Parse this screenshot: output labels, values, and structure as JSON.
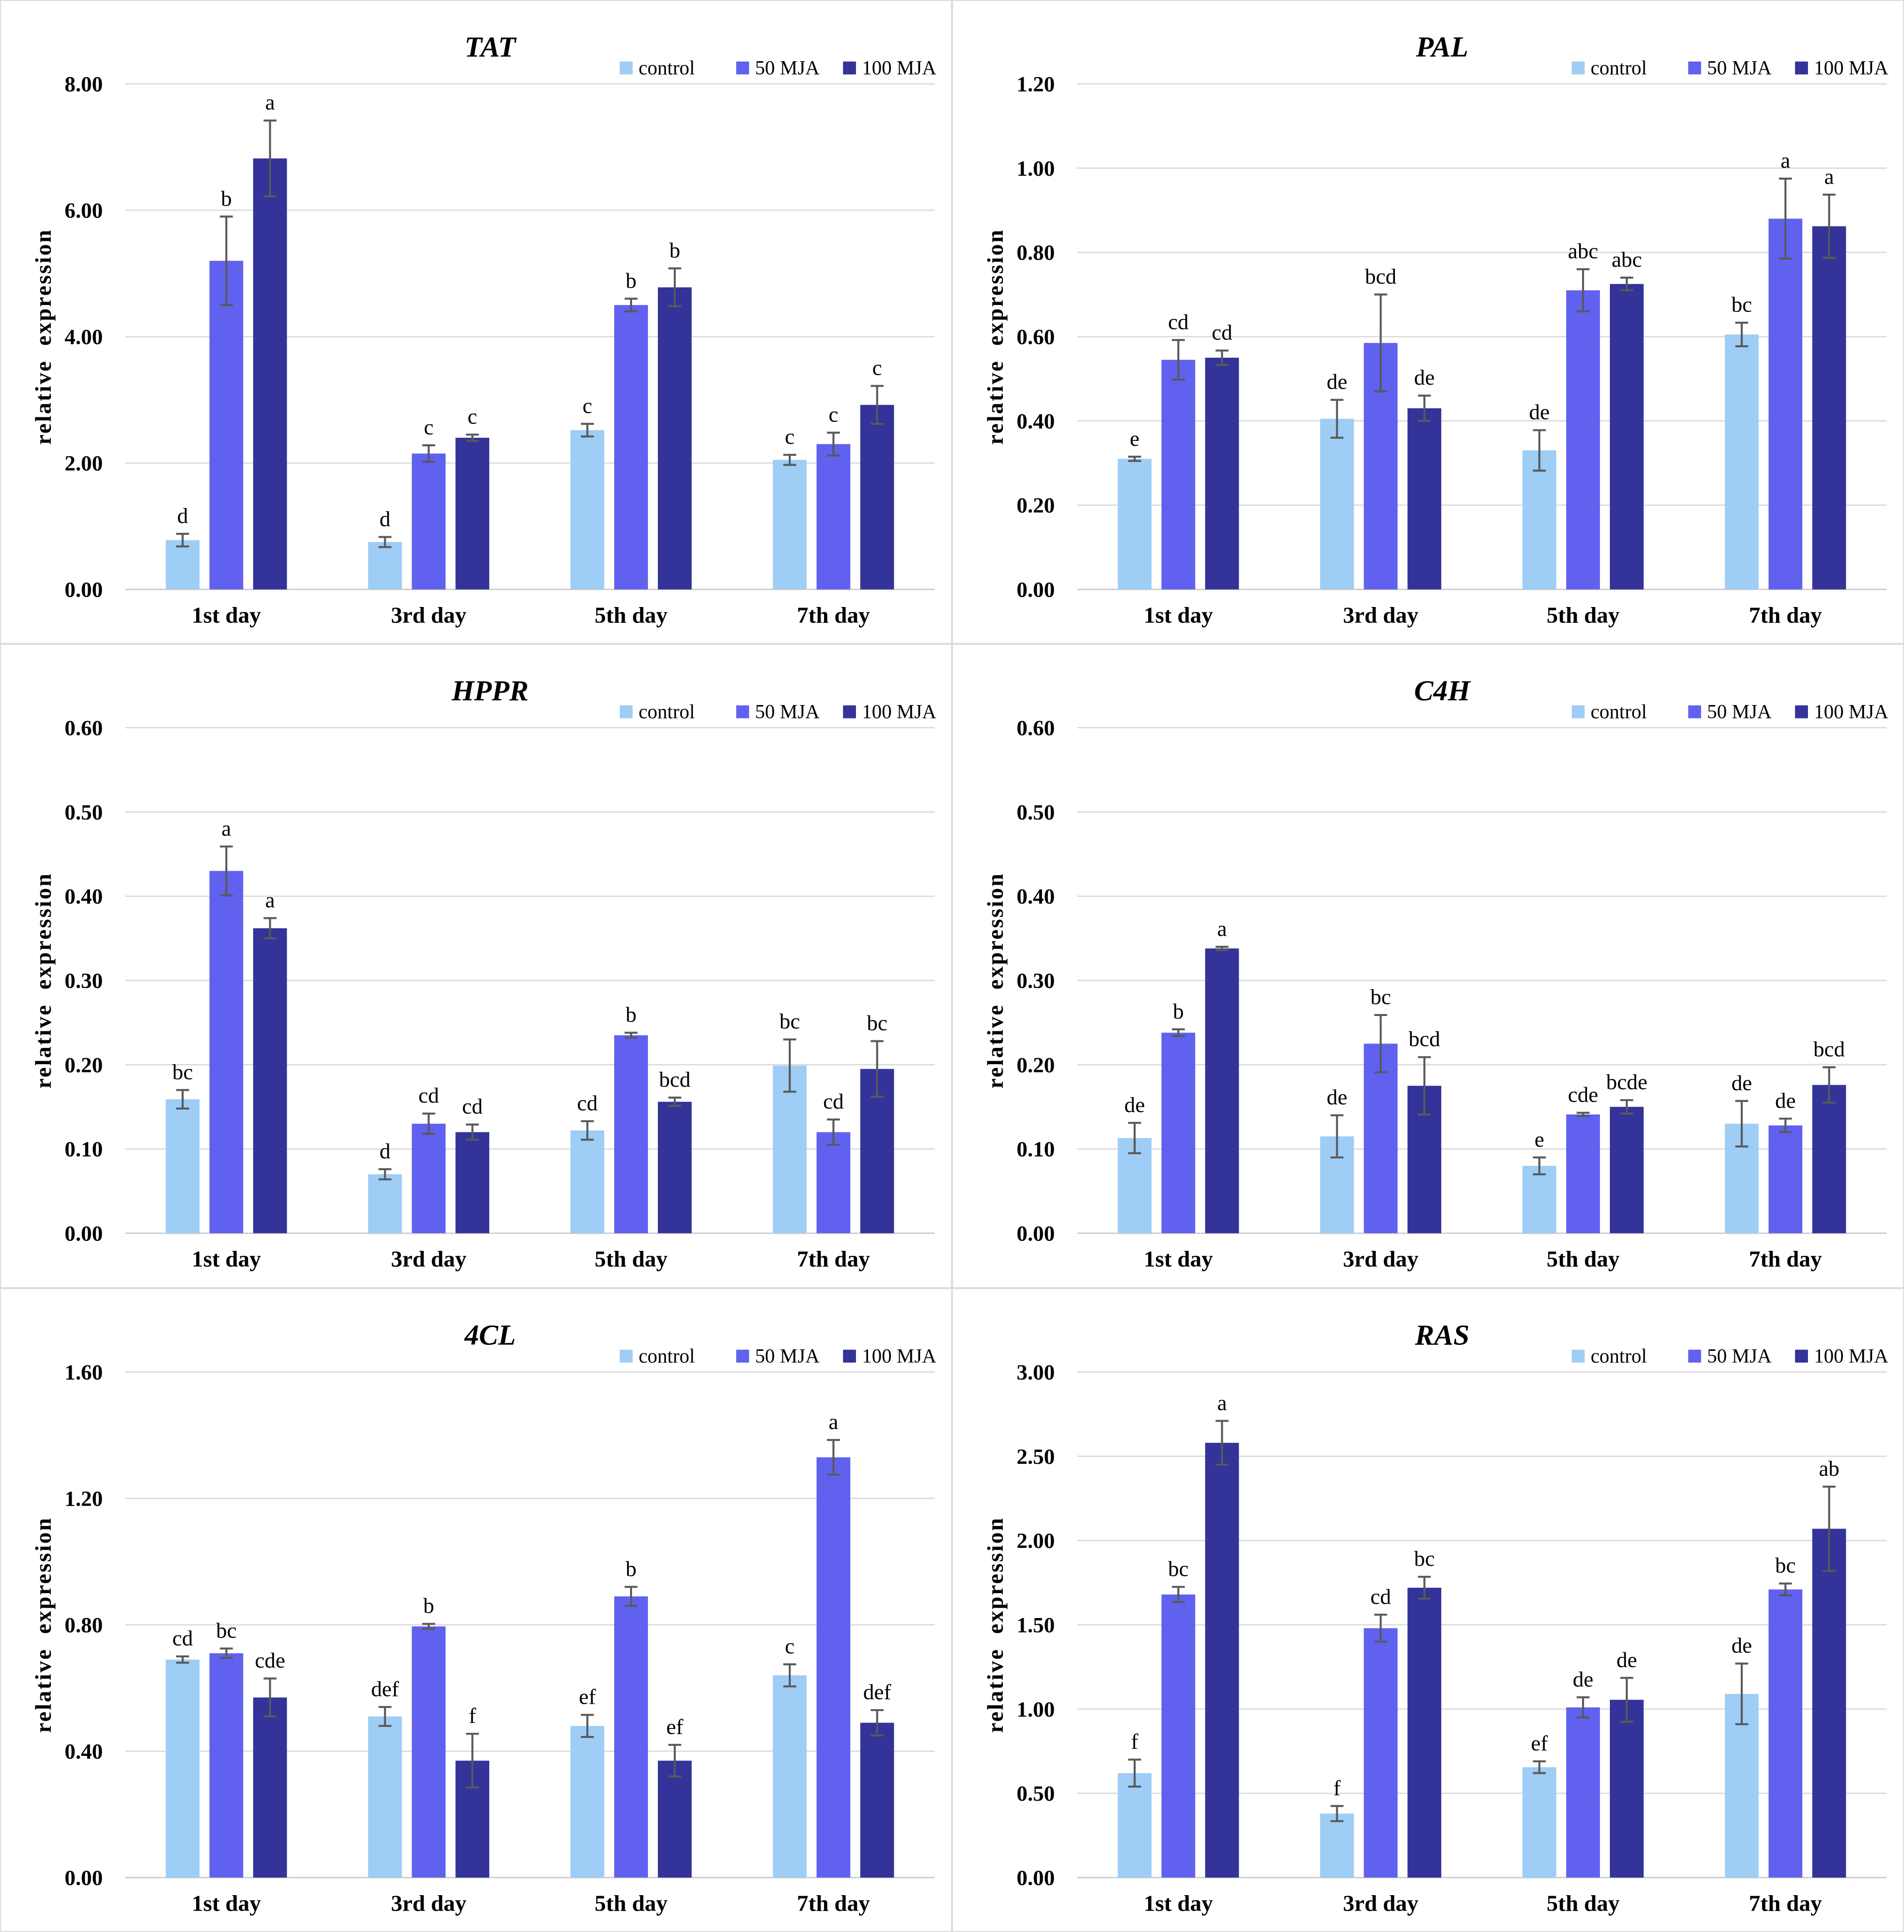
{
  "figure": {
    "description": "Relative expression bar charts of six genes under methyl jasmonate treatments",
    "ylabel": "relative expression",
    "categories": [
      "1st day",
      "3rd day",
      "5th day",
      "7th day"
    ]
  },
  "legend": {
    "items": [
      {
        "label": "control",
        "color": "#9ECDF5"
      },
      {
        "label": "50 MJA",
        "color": "#6161F0"
      },
      {
        "label": "100 MJA",
        "color": "#333399"
      }
    ]
  },
  "styles": {
    "grid_color": "#D9D9D9",
    "axis_color": "#D0D0D0",
    "error_color": "#595959",
    "panel_border": "#DCDCDC",
    "text_color": "#000000",
    "background": "#FFFFFF"
  },
  "chart_data": [
    {
      "type": "bar",
      "title": "TAT",
      "ylabel": "relative expression",
      "categories": [
        "1st day",
        "3rd day",
        "5th day",
        "7th day"
      ],
      "ylim": [
        0,
        8
      ],
      "yticks": [
        0,
        2,
        4,
        6,
        8
      ],
      "ytick_labels": [
        "0.00",
        "2.00",
        "4.00",
        "6.00",
        "8.00"
      ],
      "grid": true,
      "legend_position": "top-right",
      "series": [
        {
          "name": "control",
          "color": "#9ECDF5",
          "values": [
            0.78,
            0.75,
            2.52,
            2.05
          ],
          "errors": [
            0.1,
            0.08,
            0.1,
            0.08
          ],
          "letters": [
            "d",
            "d",
            "c",
            "c"
          ]
        },
        {
          "name": "50 MJA",
          "color": "#6161F0",
          "values": [
            5.2,
            2.15,
            4.5,
            2.3
          ],
          "errors": [
            0.7,
            0.13,
            0.1,
            0.18
          ],
          "letters": [
            "b",
            "c",
            "b",
            "c"
          ]
        },
        {
          "name": "100 MJA",
          "color": "#333399",
          "values": [
            6.82,
            2.4,
            4.78,
            2.92
          ],
          "errors": [
            0.6,
            0.05,
            0.3,
            0.3
          ],
          "letters": [
            "a",
            "c",
            "b",
            "c"
          ]
        }
      ]
    },
    {
      "type": "bar",
      "title": "PAL",
      "ylabel": "relative expression",
      "categories": [
        "1st day",
        "3rd day",
        "5th day",
        "7th day"
      ],
      "ylim": [
        0,
        1.2
      ],
      "yticks": [
        0,
        0.2,
        0.4,
        0.6,
        0.8,
        1.0,
        1.2
      ],
      "ytick_labels": [
        "0.00",
        "0.20",
        "0.40",
        "0.60",
        "0.80",
        "1.00",
        "1.20"
      ],
      "grid": true,
      "legend_position": "top-right",
      "series": [
        {
          "name": "control",
          "color": "#9ECDF5",
          "values": [
            0.31,
            0.405,
            0.33,
            0.605
          ],
          "errors": [
            0.005,
            0.045,
            0.048,
            0.028
          ],
          "letters": [
            "e",
            "de",
            "de",
            "bc"
          ]
        },
        {
          "name": "50 MJA",
          "color": "#6161F0",
          "values": [
            0.545,
            0.585,
            0.71,
            0.88
          ],
          "errors": [
            0.047,
            0.115,
            0.05,
            0.095
          ],
          "letters": [
            "cd",
            "bcd",
            "abc",
            "a"
          ]
        },
        {
          "name": "100 MJA",
          "color": "#333399",
          "values": [
            0.55,
            0.43,
            0.725,
            0.862
          ],
          "errors": [
            0.017,
            0.03,
            0.015,
            0.075
          ],
          "letters": [
            "cd",
            "de",
            "abc",
            "a"
          ]
        }
      ]
    },
    {
      "type": "bar",
      "title": "HPPR",
      "ylabel": "relative expression",
      "categories": [
        "1st day",
        "3rd day",
        "5th day",
        "7th day"
      ],
      "ylim": [
        0,
        0.6
      ],
      "yticks": [
        0,
        0.1,
        0.2,
        0.3,
        0.4,
        0.5,
        0.6
      ],
      "ytick_labels": [
        "0.00",
        "0.10",
        "0.20",
        "0.30",
        "0.40",
        "0.50",
        "0.60"
      ],
      "grid": true,
      "legend_position": "top-right",
      "series": [
        {
          "name": "control",
          "color": "#9ECDF5",
          "values": [
            0.159,
            0.07,
            0.122,
            0.199
          ],
          "errors": [
            0.011,
            0.006,
            0.011,
            0.031
          ],
          "letters": [
            "bc",
            "d",
            "cd",
            "bc"
          ]
        },
        {
          "name": "50 MJA",
          "color": "#6161F0",
          "values": [
            0.43,
            0.13,
            0.235,
            0.12
          ],
          "errors": [
            0.029,
            0.012,
            0.003,
            0.015
          ],
          "letters": [
            "a",
            "cd",
            "b",
            "cd"
          ]
        },
        {
          "name": "100 MJA",
          "color": "#333399",
          "values": [
            0.362,
            0.12,
            0.156,
            0.195
          ],
          "errors": [
            0.012,
            0.009,
            0.005,
            0.033
          ],
          "letters": [
            "a",
            "cd",
            "bcd",
            "bc"
          ]
        }
      ]
    },
    {
      "type": "bar",
      "title": "C4H",
      "ylabel": "relative expression",
      "categories": [
        "1st day",
        "3rd day",
        "5th day",
        "7th day"
      ],
      "ylim": [
        0,
        0.6
      ],
      "yticks": [
        0,
        0.1,
        0.2,
        0.3,
        0.4,
        0.5,
        0.6
      ],
      "ytick_labels": [
        "0.00",
        "0.10",
        "0.20",
        "0.30",
        "0.40",
        "0.50",
        "0.60"
      ],
      "grid": true,
      "legend_position": "top-right",
      "series": [
        {
          "name": "control",
          "color": "#9ECDF5",
          "values": [
            0.113,
            0.115,
            0.08,
            0.13
          ],
          "errors": [
            0.018,
            0.025,
            0.01,
            0.027
          ],
          "letters": [
            "de",
            "de",
            "e",
            "de"
          ]
        },
        {
          "name": "50 MJA",
          "color": "#6161F0",
          "values": [
            0.238,
            0.225,
            0.141,
            0.128
          ],
          "errors": [
            0.004,
            0.034,
            0.002,
            0.008
          ],
          "letters": [
            "b",
            "bc",
            "cde",
            "de"
          ]
        },
        {
          "name": "100 MJA",
          "color": "#333399",
          "values": [
            0.338,
            0.175,
            0.15,
            0.176
          ],
          "errors": [
            0.002,
            0.034,
            0.008,
            0.021
          ],
          "letters": [
            "a",
            "bcd",
            "bcde",
            "bcd"
          ]
        }
      ]
    },
    {
      "type": "bar",
      "title": "4CL",
      "ylabel": "relative expression",
      "categories": [
        "1st day",
        "3rd day",
        "5th day",
        "7th day"
      ],
      "ylim": [
        0,
        1.6
      ],
      "yticks": [
        0,
        0.4,
        0.8,
        1.2,
        1.6
      ],
      "ytick_labels": [
        "0.00",
        "0.40",
        "0.80",
        "1.20",
        "1.60"
      ],
      "grid": true,
      "legend_position": "top-right",
      "series": [
        {
          "name": "control",
          "color": "#9ECDF5",
          "values": [
            0.69,
            0.51,
            0.48,
            0.64
          ],
          "errors": [
            0.01,
            0.03,
            0.035,
            0.035
          ],
          "letters": [
            "cd",
            "def",
            "ef",
            "c"
          ]
        },
        {
          "name": "50 MJA",
          "color": "#6161F0",
          "values": [
            0.71,
            0.795,
            0.89,
            1.33
          ],
          "errors": [
            0.015,
            0.008,
            0.03,
            0.055
          ],
          "letters": [
            "bc",
            "b",
            "b",
            "a"
          ]
        },
        {
          "name": "100 MJA",
          "color": "#333399",
          "values": [
            0.57,
            0.37,
            0.37,
            0.49
          ],
          "errors": [
            0.06,
            0.085,
            0.05,
            0.04
          ],
          "letters": [
            "cde",
            "f",
            "ef",
            "def"
          ]
        }
      ]
    },
    {
      "type": "bar",
      "title": "RAS",
      "ylabel": "relative expression",
      "categories": [
        "1st day",
        "3rd day",
        "5th day",
        "7th day"
      ],
      "ylim": [
        0,
        3
      ],
      "yticks": [
        0,
        0.5,
        1.0,
        1.5,
        2.0,
        2.5,
        3.0
      ],
      "ytick_labels": [
        "0.00",
        "0.50",
        "1.00",
        "1.50",
        "2.00",
        "2.50",
        "3.00"
      ],
      "grid": true,
      "legend_position": "top-right",
      "series": [
        {
          "name": "control",
          "color": "#9ECDF5",
          "values": [
            0.62,
            0.38,
            0.655,
            1.09
          ],
          "errors": [
            0.08,
            0.045,
            0.035,
            0.18
          ],
          "letters": [
            "f",
            "f",
            "ef",
            "de"
          ]
        },
        {
          "name": "50 MJA",
          "color": "#6161F0",
          "values": [
            1.68,
            1.48,
            1.01,
            1.71
          ],
          "errors": [
            0.045,
            0.08,
            0.06,
            0.035
          ],
          "letters": [
            "bc",
            "cd",
            "de",
            "bc"
          ]
        },
        {
          "name": "100 MJA",
          "color": "#333399",
          "values": [
            2.58,
            1.72,
            1.055,
            2.07
          ],
          "errors": [
            0.13,
            0.065,
            0.13,
            0.25
          ],
          "letters": [
            "a",
            "bc",
            "de",
            "ab"
          ]
        }
      ]
    }
  ]
}
